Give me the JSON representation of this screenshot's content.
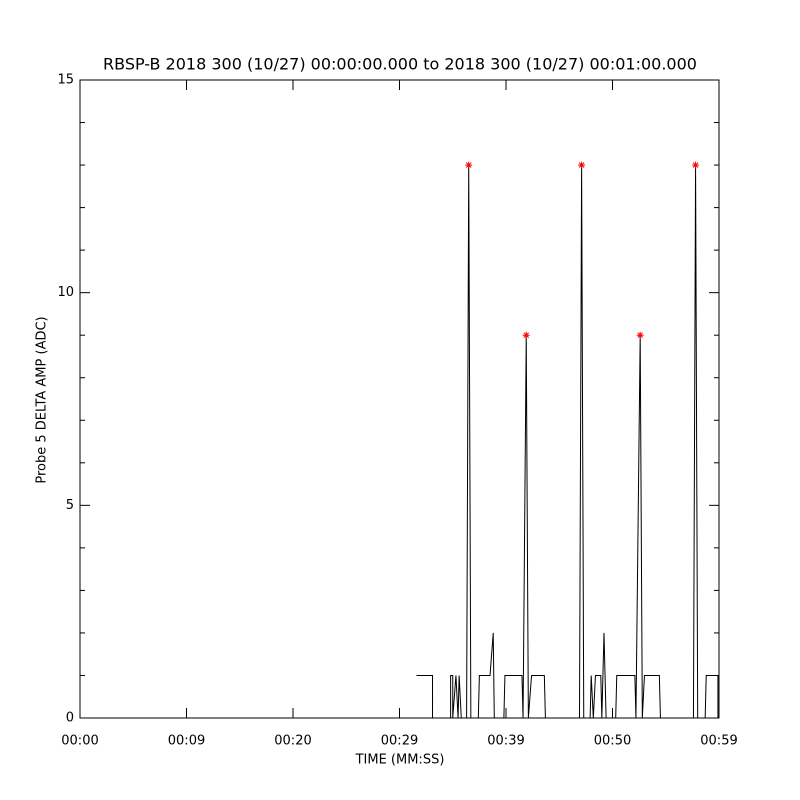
{
  "chart_data": {
    "type": "line",
    "title": "RBSP-B 2018 300 (10/27) 00:00:00.000 to 2018 300 (10/27) 00:01:00.000",
    "x_label": "TIME (MM:SS)",
    "y_label": "Probe 5 DELTA AMP (ADC)",
    "xlim": [
      0,
      60
    ],
    "ylim": [
      0,
      15
    ],
    "xticks": [
      {
        "value": 0,
        "label": "00:00"
      },
      {
        "value": 10,
        "label": "00:09"
      },
      {
        "value": 20,
        "label": "00:20"
      },
      {
        "value": 30,
        "label": "00:29"
      },
      {
        "value": 40,
        "label": "00:39"
      },
      {
        "value": 50,
        "label": "00:50"
      },
      {
        "value": 60,
        "label": "00:59"
      }
    ],
    "yticks": [
      0,
      5,
      10,
      15
    ],
    "yminorticks": [
      1,
      2,
      3,
      4,
      6,
      7,
      8,
      9,
      11,
      12,
      13,
      14
    ],
    "color": "#000000",
    "x": [
      31.6,
      33.1,
      33.1,
      34.8,
      34.8,
      35.0,
      35.0,
      35.3,
      35.5,
      35.6,
      35.8,
      36.3,
      36.5,
      36.7,
      37.4,
      37.5,
      38.5,
      38.8,
      38.9,
      39.8,
      39.9,
      41.5,
      41.6,
      41.9,
      42.1,
      42.4,
      43.6,
      43.7,
      46.9,
      47.1,
      47.3,
      47.9,
      48.0,
      48.2,
      48.4,
      48.9,
      49.0,
      49.2,
      49.4,
      50.3,
      50.4,
      52.1,
      52.2,
      52.6,
      52.8,
      53.0,
      54.4,
      54.5,
      57.6,
      57.8,
      58.0,
      58.7,
      58.8,
      59.9,
      59.9
    ],
    "values": [
      1,
      1,
      0,
      0,
      1,
      1,
      0,
      1,
      0,
      1,
      0,
      0,
      13,
      0,
      0,
      1,
      1,
      2,
      0,
      0,
      1,
      1,
      0,
      9,
      0,
      1,
      1,
      0,
      0,
      13,
      0,
      0,
      1,
      0,
      1,
      1,
      0,
      2,
      0,
      0,
      1,
      1,
      0,
      9,
      0,
      1,
      1,
      0,
      0,
      13,
      0,
      0,
      1,
      1,
      0
    ],
    "peaks": {
      "color": "#ff0000",
      "x": [
        36.5,
        41.9,
        47.1,
        52.6,
        57.8
      ],
      "values": [
        13,
        9,
        13,
        9,
        13
      ]
    }
  }
}
